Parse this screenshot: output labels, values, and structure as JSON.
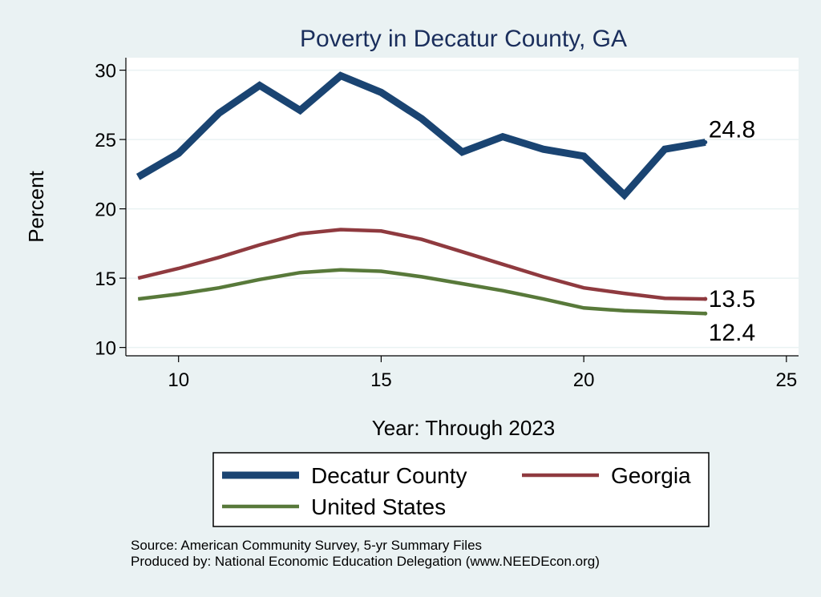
{
  "chart_data": {
    "type": "line",
    "title": "Poverty in Decatur County, GA",
    "xlabel": "Year: Through 2023",
    "ylabel": "Percent",
    "xlim": [
      8.7,
      25.3
    ],
    "ylim": [
      9.4,
      30.9
    ],
    "xticks": [
      10,
      15,
      20,
      25
    ],
    "yticks": [
      10,
      15,
      20,
      25,
      30
    ],
    "grid": true,
    "x": [
      9,
      10,
      11,
      12,
      13,
      14,
      15,
      16,
      17,
      18,
      19,
      20,
      21,
      22,
      23
    ],
    "series": [
      {
        "name": "Decatur County",
        "color": "#1a4472",
        "values": [
          22.3,
          24.0,
          26.9,
          28.9,
          27.1,
          29.6,
          28.4,
          26.5,
          24.1,
          25.2,
          24.3,
          23.8,
          21.0,
          24.3,
          24.8
        ],
        "end_label": "24.8"
      },
      {
        "name": "Georgia",
        "color": "#8f3a3f",
        "values": [
          15.0,
          15.7,
          16.5,
          17.4,
          18.2,
          18.5,
          18.4,
          17.8,
          16.9,
          16.0,
          15.1,
          14.3,
          13.9,
          13.55,
          13.5
        ],
        "end_label": "13.5"
      },
      {
        "name": "United States",
        "color": "#58793a",
        "values": [
          13.5,
          13.85,
          14.3,
          14.9,
          15.4,
          15.6,
          15.5,
          15.1,
          14.6,
          14.1,
          13.5,
          12.85,
          12.65,
          12.55,
          12.45
        ],
        "end_label": "12.4"
      }
    ],
    "legend": [
      "Decatur County",
      "Georgia",
      "United States"
    ]
  },
  "source_line": "Source: American Community Survey, 5-yr Summary Files",
  "produced_line": "Produced by: National Economic Education Delegation (www.NEEDEcon.org)"
}
